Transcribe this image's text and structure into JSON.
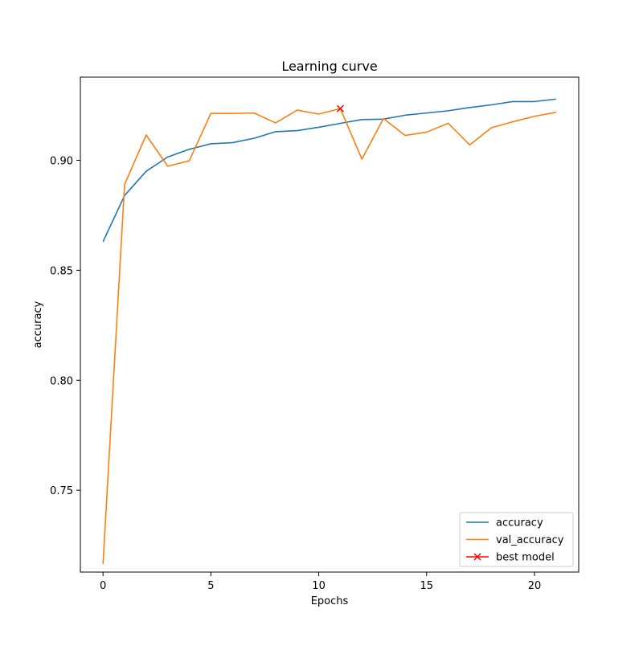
{
  "chart_data": {
    "type": "line",
    "title": "Learning curve",
    "xlabel": "Epochs",
    "ylabel": "accuracy",
    "xlim": [
      -1.05,
      22.05
    ],
    "ylim": [
      0.7128,
      0.9378
    ],
    "xticks": [
      0,
      5,
      10,
      15,
      20
    ],
    "xtick_labels": [
      "0",
      "5",
      "10",
      "15",
      "20"
    ],
    "yticks": [
      0.75,
      0.8,
      0.85,
      0.9
    ],
    "ytick_labels": [
      "0.75",
      "0.80",
      "0.85",
      "0.90"
    ],
    "grid": false,
    "legend_position": "lower-right",
    "x": [
      0,
      1,
      2,
      3,
      4,
      5,
      6,
      7,
      8,
      9,
      10,
      11,
      12,
      13,
      14,
      15,
      16,
      17,
      18,
      19,
      20,
      21
    ],
    "series": [
      {
        "name": "accuracy",
        "color": "#1f77b4",
        "marker": "none",
        "values": [
          0.863,
          0.884,
          0.895,
          0.9015,
          0.905,
          0.9075,
          0.908,
          0.91,
          0.913,
          0.9135,
          0.915,
          0.9168,
          0.9185,
          0.9187,
          0.9205,
          0.9215,
          0.9225,
          0.924,
          0.9252,
          0.9267,
          0.9267,
          0.9278
        ]
      },
      {
        "name": "val_accuracy",
        "color": "#ff7f0e",
        "marker": "none",
        "values": [
          0.7165,
          0.889,
          0.9115,
          0.8973,
          0.8998,
          0.9213,
          0.9213,
          0.9215,
          0.917,
          0.9228,
          0.921,
          0.9235,
          0.9005,
          0.919,
          0.9113,
          0.9128,
          0.9168,
          0.907,
          0.9148,
          0.9175,
          0.92,
          0.9218
        ]
      }
    ],
    "best_model": {
      "name": "best model",
      "color": "#ff0000",
      "marker": "x",
      "x": 11,
      "y": 0.9235
    }
  }
}
